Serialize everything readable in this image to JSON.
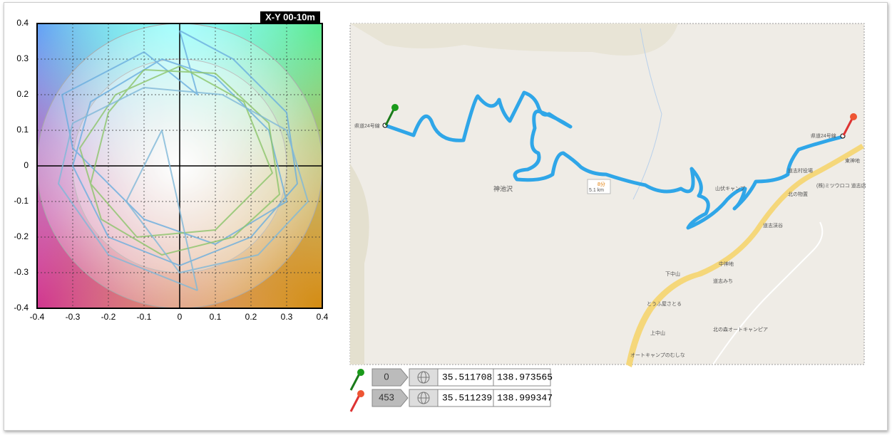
{
  "plot": {
    "title": "X-Y 00-10m",
    "xlim": [
      -0.4,
      0.4
    ],
    "ylim": [
      -0.4,
      0.4
    ],
    "xticks": [
      -0.4,
      -0.3,
      -0.2,
      -0.1,
      0,
      0.1,
      0.2,
      0.3,
      0.4
    ],
    "yticks": [
      -0.4,
      -0.3,
      -0.2,
      -0.1,
      0,
      0.1,
      0.2,
      0.3,
      0.4
    ],
    "rings": [
      0.3,
      0.4
    ],
    "grid": true,
    "traces": [
      {
        "color": "#6aaede",
        "x": [
          0,
          0.15,
          0.3,
          0.33,
          0.2,
          0,
          -0.2,
          -0.3,
          -0.25,
          -0.05,
          0.1,
          0.25,
          0.3,
          0.1,
          -0.1,
          -0.3,
          -0.33,
          -0.1,
          0.05,
          0
        ],
        "y": [
          0.38,
          0.3,
          0.15,
          -0.05,
          -0.2,
          -0.28,
          -0.2,
          0,
          0.18,
          0.3,
          0.25,
          0.1,
          -0.1,
          -0.22,
          -0.15,
          0.05,
          0.2,
          0.32,
          0.2,
          0.38
        ]
      },
      {
        "color": "#8cc46a",
        "x": [
          -0.1,
          0.1,
          0.25,
          0.28,
          0.15,
          -0.05,
          -0.22,
          -0.28,
          -0.18,
          0,
          0.18,
          0.26,
          0.1,
          -0.12,
          -0.25,
          -0.2,
          -0.1
        ],
        "y": [
          0.27,
          0.26,
          0.12,
          -0.08,
          -0.2,
          -0.25,
          -0.15,
          0.05,
          0.2,
          0.28,
          0.18,
          -0.02,
          -0.18,
          -0.2,
          -0.05,
          0.15,
          0.27
        ]
      },
      {
        "color": "#7fb8d8",
        "x": [
          0.05,
          -0.2,
          -0.34,
          -0.3,
          -0.1,
          0.12,
          0.3,
          0.36,
          0.22,
          0,
          -0.15,
          -0.05,
          0.05
        ],
        "y": [
          -0.35,
          -0.25,
          -0.05,
          0.12,
          0.22,
          0.2,
          0.1,
          -0.1,
          -0.25,
          -0.3,
          -0.1,
          0.1,
          -0.35
        ]
      }
    ]
  },
  "map": {
    "labels": [
      "県道24号線",
      "神池沢",
      "8分",
      "5.1 km",
      "山伏キャンプ",
      "道志村役場",
      "東神地",
      "北の物置",
      "(株)ミツウロコ 道志店",
      "道志渓谷",
      "中神地",
      "下中山",
      "道志みち",
      "とうふ屋さとる",
      "北の森オートキャンピア",
      "上中山",
      "オートキャンプのむしな",
      "県道24号線"
    ]
  },
  "pins": [
    {
      "index": 0,
      "lat": 35.511708,
      "lon": 138.973565
    },
    {
      "index": 453,
      "lat": 35.511239,
      "lon": 138.999347
    }
  ]
}
